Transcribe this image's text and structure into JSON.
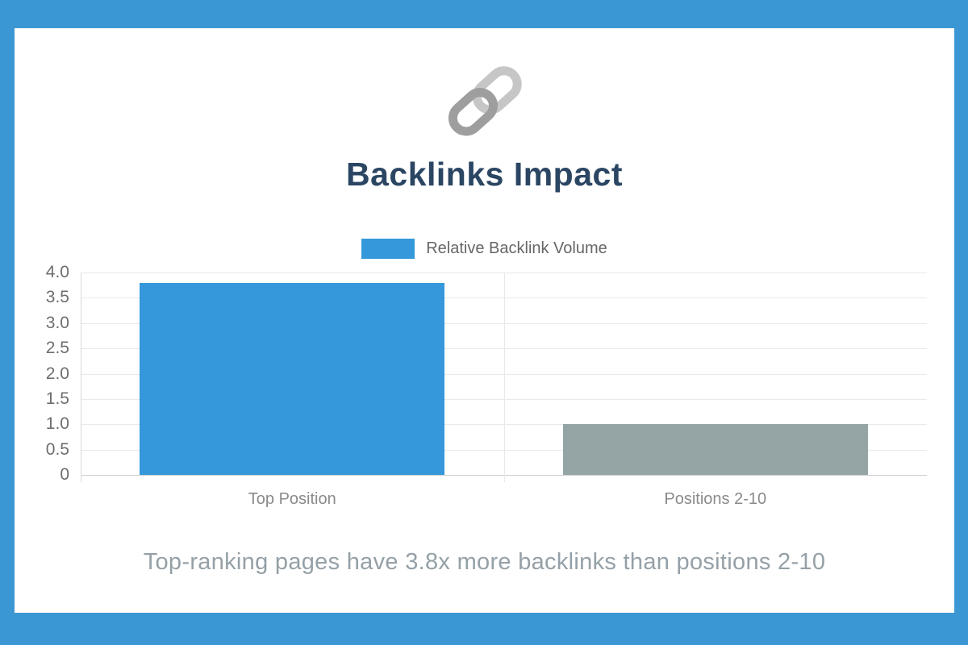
{
  "frame": {
    "background_color": "#3b97d4",
    "card_color": "#ffffff"
  },
  "header": {
    "icon": "chain-link-icon",
    "icon_colors": {
      "light_ring": "#c6c6c6",
      "dark_ring": "#9e9e9e"
    },
    "title": "Backlinks Impact",
    "title_color": "#2b4663"
  },
  "legend": {
    "label": "Relative Backlink Volume",
    "swatch_color": "#3498db",
    "text_color": "#666666"
  },
  "chart_data": {
    "type": "bar",
    "title": "Backlinks Impact",
    "categories": [
      "Top Position",
      "Positions 2-10"
    ],
    "series": [
      {
        "name": "Relative Backlink Volume",
        "values": [
          3.8,
          1.0
        ]
      }
    ],
    "bar_colors": [
      "#3498db",
      "#95a5a6"
    ],
    "xlabel": "",
    "ylabel": "",
    "ylim": [
      0,
      4.0
    ],
    "ytick_step": 0.5,
    "ytick_labels": [
      "4.0",
      "3.5",
      "3.0",
      "2.5",
      "2.0",
      "1.5",
      "1.0",
      "0.5",
      "0"
    ],
    "grid": true,
    "legend_position": "top",
    "bar_fraction_of_category": 0.72
  },
  "caption": {
    "text": "Top-ranking pages have 3.8x more backlinks than positions 2-10",
    "color": "#95a0a7"
  }
}
